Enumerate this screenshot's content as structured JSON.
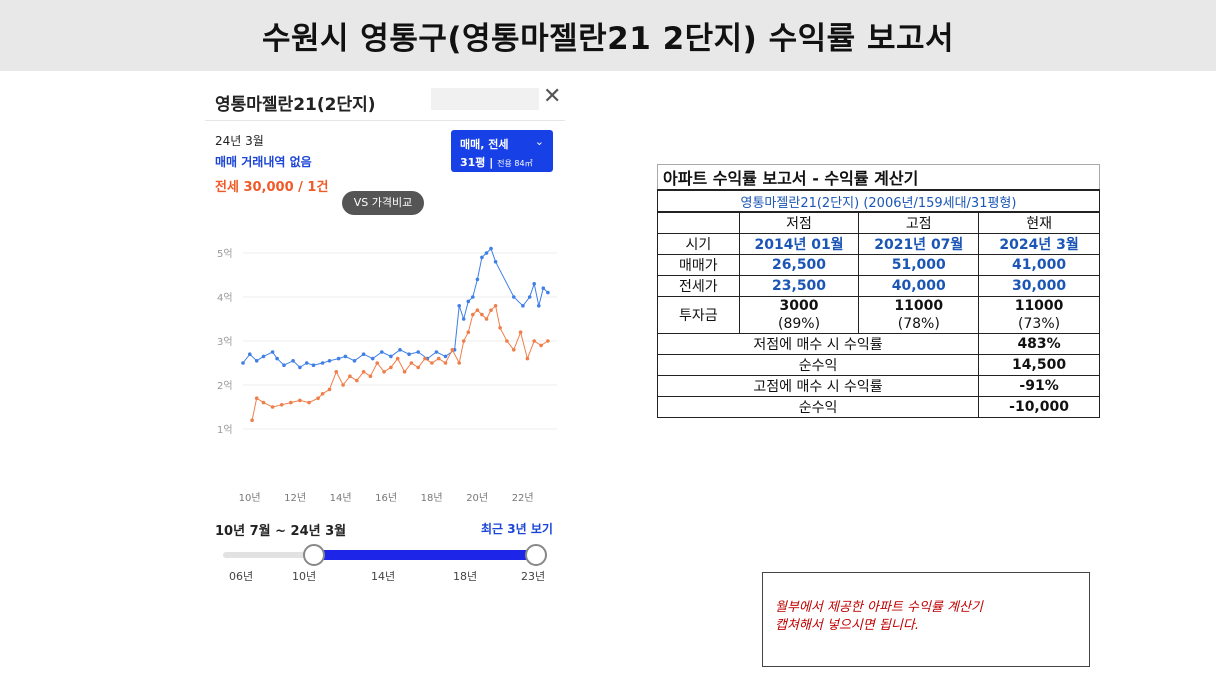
{
  "header": {
    "title": "수원시 영통구(영통마젤란21  2단지) 수익률 보고서"
  },
  "panel": {
    "title": "영통마젤란21(2단지)",
    "close_icon": "close-icon",
    "date": "24년 3월",
    "sale_status": "매매 거래내역 없음",
    "rent_status": "전세 30,000 / 1건",
    "filter": {
      "type": "매매, 전세",
      "pyeong": "31평",
      "area": "전용 84㎡"
    },
    "compare_button": "VS 가격비교",
    "range_label": "10년 7월 ~ 24년 3월",
    "recent_button": "최근 3년 보기",
    "slider_labels": [
      "06년",
      "10년",
      "14년",
      "18년",
      "23년"
    ]
  },
  "chart_data": {
    "type": "line",
    "y_tick_labels": [
      "5억",
      "4억",
      "3억",
      "2억",
      "1억"
    ],
    "x_tick_labels": [
      "10년",
      "12년",
      "14년",
      "16년",
      "18년",
      "20년",
      "22년"
    ],
    "ylim": [
      0,
      6
    ],
    "xlim": [
      2010.5,
      2024.3
    ],
    "colors": {
      "sale": "#3f7fe8",
      "rent": "#f07e4a"
    },
    "series": [
      {
        "values": [
          [
            2010.5,
            2.5
          ],
          [
            2010.8,
            2.7
          ],
          [
            2011.1,
            2.55
          ],
          [
            2011.4,
            2.65
          ],
          [
            2011.8,
            2.75
          ],
          [
            2012.0,
            2.6
          ],
          [
            2012.3,
            2.45
          ],
          [
            2012.7,
            2.55
          ],
          [
            2013.0,
            2.4
          ],
          [
            2013.3,
            2.5
          ],
          [
            2013.6,
            2.45
          ],
          [
            2014.0,
            2.5
          ],
          [
            2014.3,
            2.55
          ],
          [
            2014.7,
            2.6
          ],
          [
            2015.0,
            2.65
          ],
          [
            2015.4,
            2.55
          ],
          [
            2015.8,
            2.7
          ],
          [
            2016.2,
            2.6
          ],
          [
            2016.6,
            2.75
          ],
          [
            2017.0,
            2.65
          ],
          [
            2017.4,
            2.8
          ],
          [
            2017.8,
            2.7
          ],
          [
            2018.2,
            2.75
          ],
          [
            2018.6,
            2.6
          ],
          [
            2019.0,
            2.75
          ],
          [
            2019.4,
            2.65
          ],
          [
            2019.8,
            2.8
          ],
          [
            2020.0,
            3.8
          ],
          [
            2020.2,
            3.5
          ],
          [
            2020.4,
            3.9
          ],
          [
            2020.6,
            4.0
          ],
          [
            2020.8,
            4.4
          ],
          [
            2021.0,
            4.9
          ],
          [
            2021.2,
            5.0
          ],
          [
            2021.4,
            5.1
          ],
          [
            2021.6,
            4.8
          ],
          [
            2022.4,
            4.0
          ],
          [
            2022.8,
            3.8
          ],
          [
            2023.1,
            4.0
          ],
          [
            2023.3,
            4.3
          ],
          [
            2023.5,
            3.8
          ],
          [
            2023.7,
            4.2
          ],
          [
            2023.9,
            4.1
          ]
        ]
      },
      {
        "values": [
          [
            2010.9,
            1.2
          ],
          [
            2011.1,
            1.7
          ],
          [
            2011.4,
            1.6
          ],
          [
            2011.8,
            1.5
          ],
          [
            2012.2,
            1.55
          ],
          [
            2012.6,
            1.6
          ],
          [
            2013.0,
            1.65
          ],
          [
            2013.4,
            1.6
          ],
          [
            2013.8,
            1.7
          ],
          [
            2014.0,
            1.8
          ],
          [
            2014.3,
            1.9
          ],
          [
            2014.6,
            2.3
          ],
          [
            2014.9,
            2.0
          ],
          [
            2015.2,
            2.2
          ],
          [
            2015.5,
            2.1
          ],
          [
            2015.8,
            2.3
          ],
          [
            2016.1,
            2.2
          ],
          [
            2016.4,
            2.5
          ],
          [
            2016.7,
            2.3
          ],
          [
            2017.0,
            2.4
          ],
          [
            2017.3,
            2.6
          ],
          [
            2017.6,
            2.3
          ],
          [
            2017.9,
            2.5
          ],
          [
            2018.2,
            2.4
          ],
          [
            2018.5,
            2.6
          ],
          [
            2018.8,
            2.5
          ],
          [
            2019.1,
            2.6
          ],
          [
            2019.4,
            2.5
          ],
          [
            2019.7,
            2.8
          ],
          [
            2020.0,
            2.5
          ],
          [
            2020.2,
            3.0
          ],
          [
            2020.4,
            3.2
          ],
          [
            2020.6,
            3.6
          ],
          [
            2020.8,
            3.7
          ],
          [
            2021.0,
            3.6
          ],
          [
            2021.2,
            3.5
          ],
          [
            2021.4,
            3.7
          ],
          [
            2021.6,
            3.8
          ],
          [
            2021.8,
            3.3
          ],
          [
            2022.1,
            3.0
          ],
          [
            2022.4,
            2.8
          ],
          [
            2022.7,
            3.2
          ],
          [
            2023.0,
            2.6
          ],
          [
            2023.3,
            3.0
          ],
          [
            2023.6,
            2.9
          ],
          [
            2023.9,
            3.0
          ]
        ]
      }
    ]
  },
  "report": {
    "title": "아파트 수익률 보고서 - 수익률 계산기",
    "subtitle": "영통마젤란21(2단지) (2006년/159세대/31평형)",
    "col_headers": [
      "저점",
      "고점",
      "현재"
    ],
    "rows": [
      {
        "label": "시기",
        "values": [
          "2014년 01월",
          "2021년 07월",
          "2024년 3월"
        ]
      },
      {
        "label": "매매가",
        "values": [
          "26,500",
          "51,000",
          "41,000"
        ]
      },
      {
        "label": "전세가",
        "values": [
          "23,500",
          "40,000",
          "30,000"
        ]
      }
    ],
    "investment": {
      "label": "투자금",
      "values": [
        "3000",
        "11000",
        "11000"
      ],
      "ratios": [
        "(89%)",
        "(78%)",
        "(73%)"
      ]
    },
    "summary": [
      {
        "label": "저점에 매수 시 수익률",
        "value": "483%"
      },
      {
        "label": "순수익",
        "value": "14,500"
      },
      {
        "label": "고점에 매수 시 수익률",
        "value": "-91%"
      },
      {
        "label": "순수익",
        "value": "-10,000"
      }
    ]
  },
  "note": {
    "line1": "월부에서 제공한 아파트 수익률 계산기",
    "line2": "캡쳐해서 넣으시면 됩니다."
  }
}
